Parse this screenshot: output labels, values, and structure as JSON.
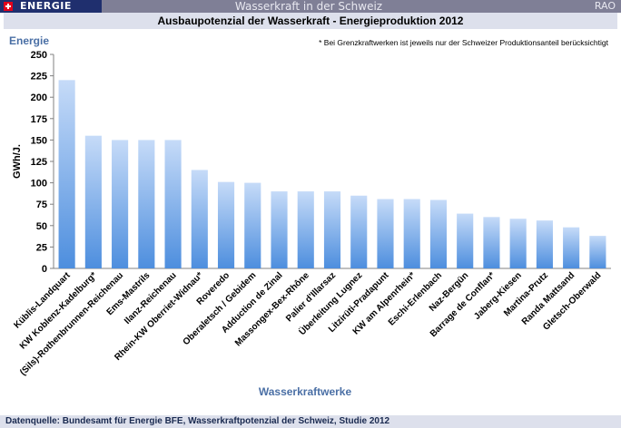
{
  "header": {
    "badge": "ENERGIE",
    "title": "Wasserkraft in der Schweiz",
    "right": "RAO"
  },
  "chart_title": "Ausbaupotenzial der Wasserkraft - Energieproduktion 2012",
  "footer": "Datenquelle: Bundesamt für Energie BFE,  Wasserkraftpotenzial der Schweiz, Studie 2012",
  "colors": {
    "bar_top": "#c6dbf8",
    "bar_bottom": "#4d8ede",
    "header": "#7f7f96",
    "badge": "#1f2f6e",
    "label_blue": "#4a6fa5"
  },
  "chart_data": {
    "type": "bar",
    "title": "Ausbaupotenzial der Wasserkraft - Energieproduktion 2012",
    "corner_label": "Energie",
    "note": "* Bei Grenzkraftwerken ist jeweils nur der Schweizer Produktionsanteil berücksichtigt",
    "xlabel": "Wasserkraftwerke",
    "ylabel": "GWh/J.",
    "ylim": [
      0,
      250
    ],
    "yticks": [
      0,
      25,
      50,
      75,
      100,
      125,
      150,
      175,
      200,
      225,
      250
    ],
    "categories": [
      "Küblis-Landquart",
      "KW Koblenz-Kadelburg*",
      "(Sils)-Rothenbrunnen-Reichenau",
      "Ems-Mastrils",
      "Ilanz-Reichenau",
      "Rhein-KW Oberriet-Widnau*",
      "Roveredo",
      "Oberaletsch / Gebidem",
      "Adduction de Zinal",
      "Massongex-Bex-Rhône",
      "Palier d'Illarsaz",
      "Überleitung Lugnez",
      "Litzirüti-Pradapunt",
      "KW am Alpenrhein*",
      "Eschi-Erlenbach",
      "Naz-Bergün",
      "Barrage de Conflan*",
      "Jaberg-Kiesen",
      "Martina-Prutz",
      "Randa Mattsand",
      "Gletsch-Oberwald"
    ],
    "values": [
      220,
      155,
      150,
      150,
      150,
      115,
      101,
      100,
      90,
      90,
      90,
      85,
      81,
      81,
      80,
      64,
      60,
      58,
      56,
      48,
      38
    ],
    "grid": false,
    "legend": "none"
  }
}
